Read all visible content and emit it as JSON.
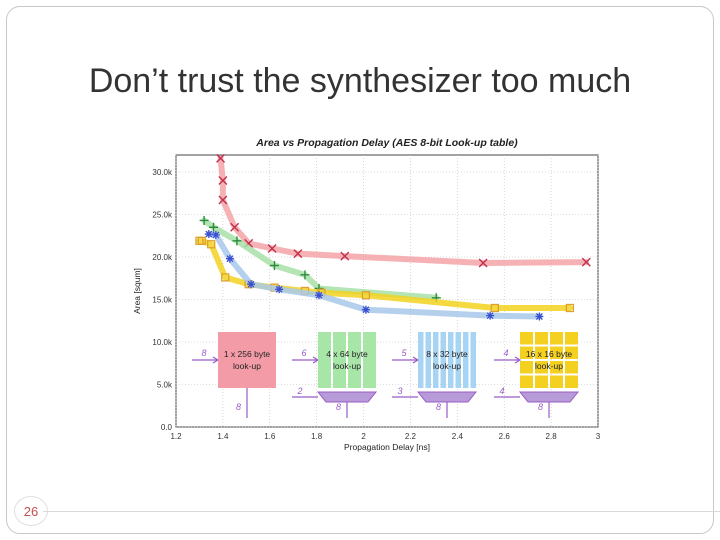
{
  "slide": {
    "title": "Don’t trust the synthesizer too much",
    "page_number": "26"
  },
  "chart_data": {
    "type": "line",
    "title": "Area vs Propagation Delay (AES 8-bit Look-up table)",
    "xlabel": "Propagation Delay [ns]",
    "ylabel": "Area [squm]",
    "xlim": [
      1.2,
      3.0
    ],
    "ylim": [
      0,
      32000
    ],
    "xticks": [
      "1.2",
      "1.4",
      "1.6",
      "1.8",
      "2",
      "2.2",
      "2.4",
      "2.6",
      "2.8",
      "3"
    ],
    "yticks": [
      "0.0",
      "5.0k",
      "10.0k",
      "15.0k",
      "20.0k",
      "25.0k",
      "30.0k"
    ],
    "grid": true,
    "series": [
      {
        "color": "#f4a3a8",
        "marker": "x",
        "marker_color": "#c0304a",
        "x": [
          1.39,
          1.4,
          1.4,
          1.45,
          1.51,
          1.61,
          1.72,
          1.92,
          2.51,
          2.95
        ],
        "y": [
          31600,
          29000,
          26700,
          23500,
          21600,
          21000,
          20400,
          20100,
          19300,
          19400
        ]
      },
      {
        "color": "#a8e0a8",
        "marker": "+",
        "marker_color": "#2e8b3e",
        "x": [
          1.32,
          1.36,
          1.46,
          1.62,
          1.75,
          1.81,
          2.31
        ],
        "y": [
          24300,
          23500,
          21900,
          19000,
          17900,
          16300,
          15200
        ]
      },
      {
        "color": "#f2d21e",
        "marker": "square",
        "marker_color": "#e0a030",
        "x": [
          1.3,
          1.31,
          1.35,
          1.41,
          1.51,
          1.62,
          1.75,
          1.82,
          2.01,
          2.56,
          2.88
        ],
        "y": [
          21900,
          21900,
          21500,
          17600,
          16800,
          16400,
          16000,
          15800,
          15500,
          14000,
          14000
        ]
      },
      {
        "color": "#a8c8ea",
        "marker": "*",
        "marker_color": "#3a50d0",
        "x": [
          1.34,
          1.37,
          1.43,
          1.52,
          1.64,
          1.81,
          2.01,
          2.54,
          2.75
        ],
        "y": [
          22700,
          22600,
          19800,
          16800,
          16200,
          15500,
          13800,
          13100,
          13000
        ]
      }
    ],
    "insets": [
      {
        "label": "1 x 256 byte look-up",
        "in_bits": "8",
        "out_bits": "8",
        "fill": "#f39ca8",
        "rows": 1,
        "cols": 1
      },
      {
        "label": "4 x 64 byte look-up",
        "in_bits": "6",
        "sel_bits": "2",
        "out_bits": "8",
        "fill": "#a8e6a8",
        "rows": 1,
        "cols": 4
      },
      {
        "label": "8 x 32 byte look-up",
        "in_bits": "5",
        "sel_bits": "3",
        "out_bits": "8",
        "fill": "#a8d4f4",
        "rows": 1,
        "cols": 8
      },
      {
        "label": "16 x 16 byte look-up",
        "in_bits": "4",
        "sel_bits": "4",
        "out_bits": "8",
        "fill": "#f4d020",
        "rows": 4,
        "cols": 4
      }
    ]
  }
}
